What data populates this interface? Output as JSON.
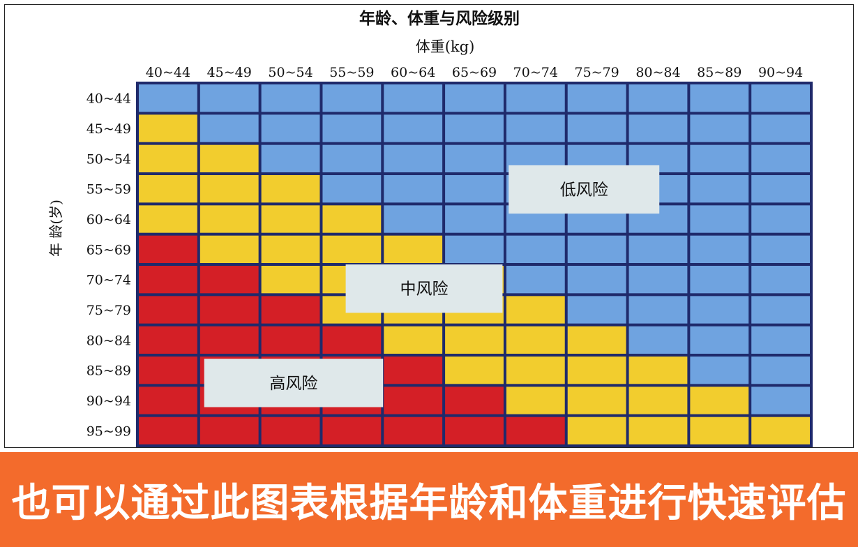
{
  "chart_data": {
    "type": "heatmap",
    "title": "年龄、体重与风险级别",
    "xlabel": "体重(kg)",
    "ylabel": "年  龄(岁)",
    "x_categories": [
      "40~44",
      "45~49",
      "50~54",
      "55~59",
      "60~64",
      "65~69",
      "70~74",
      "75~79",
      "80~84",
      "85~89",
      "90~94"
    ],
    "y_categories": [
      "40~44",
      "45~49",
      "50~54",
      "55~59",
      "60~64",
      "65~69",
      "70~74",
      "75~79",
      "80~84",
      "85~89",
      "90~94",
      "95~99"
    ],
    "levels": {
      "L": {
        "label": "低风险",
        "color": "#6fa3e0"
      },
      "M": {
        "label": "中风险",
        "color": "#f2cd2e"
      },
      "H": {
        "label": "高风险",
        "color": "#d41f26"
      }
    },
    "grid_color": "#1f2a6b",
    "cells": [
      [
        "L",
        "L",
        "L",
        "L",
        "L",
        "L",
        "L",
        "L",
        "L",
        "L",
        "L"
      ],
      [
        "M",
        "L",
        "L",
        "L",
        "L",
        "L",
        "L",
        "L",
        "L",
        "L",
        "L"
      ],
      [
        "M",
        "M",
        "L",
        "L",
        "L",
        "L",
        "L",
        "L",
        "L",
        "L",
        "L"
      ],
      [
        "M",
        "M",
        "M",
        "L",
        "L",
        "L",
        "L",
        "L",
        "L",
        "L",
        "L"
      ],
      [
        "M",
        "M",
        "M",
        "M",
        "L",
        "L",
        "L",
        "L",
        "L",
        "L",
        "L"
      ],
      [
        "H",
        "M",
        "M",
        "M",
        "M",
        "L",
        "L",
        "L",
        "L",
        "L",
        "L"
      ],
      [
        "H",
        "H",
        "M",
        "M",
        "M",
        "M",
        "L",
        "L",
        "L",
        "L",
        "L"
      ],
      [
        "H",
        "H",
        "H",
        "M",
        "M",
        "M",
        "M",
        "L",
        "L",
        "L",
        "L"
      ],
      [
        "H",
        "H",
        "H",
        "H",
        "M",
        "M",
        "M",
        "M",
        "L",
        "L",
        "L"
      ],
      [
        "H",
        "H",
        "H",
        "H",
        "H",
        "M",
        "M",
        "M",
        "M",
        "L",
        "L"
      ],
      [
        "H",
        "H",
        "H",
        "H",
        "H",
        "H",
        "M",
        "M",
        "M",
        "M",
        "L"
      ],
      [
        "H",
        "H",
        "H",
        "H",
        "H",
        "H",
        "H",
        "M",
        "M",
        "M",
        "M"
      ]
    ]
  },
  "banner": {
    "text": "也可以通过此图表根据年龄和体重进行快速评估",
    "color": "#f36b2c"
  }
}
